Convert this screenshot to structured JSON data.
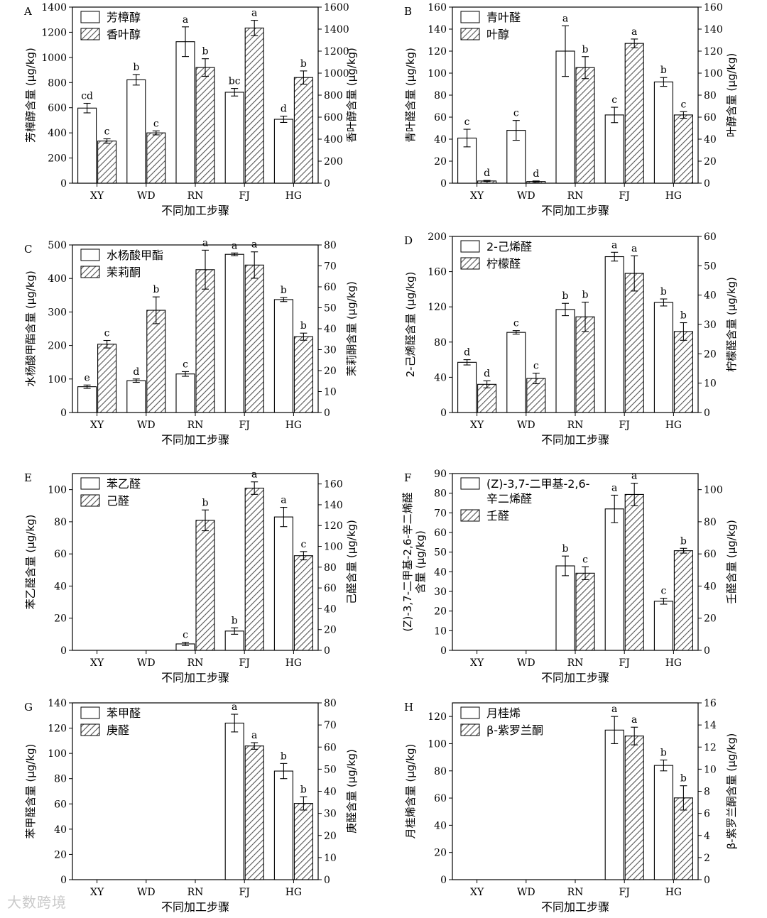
{
  "watermark": "大数跨境",
  "common": {
    "categories": [
      "XY",
      "WD",
      "RN",
      "FJ",
      "HG"
    ],
    "xlabel": "不同加工步骤"
  },
  "chart_data": [
    {
      "panel": "A",
      "type": "bar",
      "categories": [
        "XY",
        "WD",
        "RN",
        "FJ",
        "HG"
      ],
      "xlabel": "不同加工步骤",
      "ylabel": "芳樟醇含量 (μg/kg)",
      "y2label": "香叶醇含量 (μg/kg)",
      "ylim": [
        0,
        1400
      ],
      "ystep": 200,
      "y2lim": [
        0,
        1600
      ],
      "y2step": 200,
      "series": [
        {
          "name": "芳樟醇",
          "axis": "left",
          "pattern": "open",
          "values": [
            597,
            822,
            1125,
            723,
            508
          ],
          "errors": [
            38,
            42,
            118,
            30,
            25
          ],
          "labels": [
            "cd",
            "b",
            "a",
            "bc",
            "d"
          ]
        },
        {
          "name": "香叶醇",
          "axis": "right",
          "pattern": "hatch",
          "values": [
            383,
            457,
            1051,
            1410,
            960
          ],
          "errors": [
            20,
            18,
            80,
            70,
            60
          ],
          "labels": [
            "c",
            "c",
            "b",
            "a",
            "b"
          ]
        }
      ]
    },
    {
      "panel": "B",
      "type": "bar",
      "categories": [
        "XY",
        "WD",
        "RN",
        "FJ",
        "HG"
      ],
      "xlabel": "不同加工步骤",
      "ylabel": "青叶醛含量 (μg/kg)",
      "y2label": "叶醇含量 (μg/kg)",
      "ylim": [
        0,
        160
      ],
      "ystep": 20,
      "y2lim": [
        0,
        160
      ],
      "y2step": 20,
      "series": [
        {
          "name": "青叶醛",
          "axis": "left",
          "pattern": "open",
          "values": [
            41,
            48,
            120,
            62,
            92
          ],
          "errors": [
            8,
            9,
            23,
            7,
            4
          ],
          "labels": [
            "c",
            "c",
            "a",
            "c",
            "b"
          ]
        },
        {
          "name": "叶醇",
          "axis": "right",
          "pattern": "hatch",
          "values": [
            2,
            1.5,
            105,
            127,
            62
          ],
          "errors": [
            0.5,
            0.5,
            10,
            4,
            3
          ],
          "labels": [
            "d",
            "d",
            "b",
            "a",
            "c"
          ]
        }
      ]
    },
    {
      "panel": "C",
      "type": "bar",
      "categories": [
        "XY",
        "WD",
        "RN",
        "FJ",
        "HG"
      ],
      "xlabel": "不同加工步骤",
      "ylabel": "水杨酸甲酯含量 (μg/kg)",
      "y2label": "茉莉酮含量 (μg/kg)",
      "ylim": [
        0,
        500
      ],
      "ystep": 100,
      "y2lim": [
        0,
        80
      ],
      "y2step": 10,
      "series": [
        {
          "name": "水杨酸甲酯",
          "axis": "left",
          "pattern": "open",
          "values": [
            77,
            95,
            115,
            472,
            337
          ],
          "errors": [
            5,
            5,
            7,
            4,
            6
          ],
          "labels": [
            "e",
            "d",
            "c",
            "a",
            "b"
          ]
        },
        {
          "name": "茉莉酮",
          "axis": "right",
          "pattern": "hatch",
          "values": [
            32.6,
            48.8,
            68.2,
            70.4,
            36.2
          ],
          "errors": [
            1.8,
            6.4,
            9.3,
            6.3,
            1.7
          ],
          "labels": [
            "c",
            "b",
            "a",
            "a",
            "b"
          ]
        }
      ]
    },
    {
      "panel": "D",
      "type": "bar",
      "categories": [
        "XY",
        "WD",
        "RN",
        "FJ",
        "HG"
      ],
      "xlabel": "不同加工步骤",
      "ylabel": "2-己烯醛含量 (μg/kg)",
      "y2label": "柠檬醛含量 (μg/kg)",
      "ylim": [
        0,
        200
      ],
      "ystep": 40,
      "y2lim": [
        0,
        60
      ],
      "y2step": 10,
      "series": [
        {
          "name": "2-己烯醛",
          "axis": "left",
          "pattern": "open",
          "values": [
            57,
            91,
            117,
            177,
            125
          ],
          "errors": [
            3,
            2,
            7,
            5,
            4
          ],
          "labels": [
            "d",
            "c",
            "b",
            "a",
            "b"
          ]
        },
        {
          "name": "柠檬醛",
          "axis": "right",
          "pattern": "hatch",
          "values": [
            9.6,
            11.6,
            32.6,
            47.4,
            27.6
          ],
          "errors": [
            1.2,
            1.8,
            5.0,
            6.0,
            3.0
          ],
          "labels": [
            "d",
            "c",
            "b",
            "a",
            "b"
          ]
        }
      ]
    },
    {
      "panel": "E",
      "type": "bar",
      "categories": [
        "XY",
        "WD",
        "RN",
        "FJ",
        "HG"
      ],
      "xlabel": "不同加工步骤",
      "ylabel": "苯乙醛含量 (μg/kg)",
      "y2label": "己醛含量 (μg/kg)",
      "ylim": [
        0,
        110
      ],
      "ystep": 20,
      "y2lim": [
        0,
        170
      ],
      "y2step": 20,
      "series": [
        {
          "name": "苯乙醛",
          "axis": "left",
          "pattern": "open",
          "values": [
            0,
            0,
            4,
            12,
            83
          ],
          "errors": [
            0,
            0,
            1,
            2,
            6
          ],
          "labels": [
            "",
            "",
            "c",
            "b",
            "a"
          ]
        },
        {
          "name": "己醛",
          "axis": "right",
          "pattern": "hatch",
          "values": [
            0,
            0,
            125,
            156,
            91
          ],
          "errors": [
            0,
            0,
            10,
            6,
            4
          ],
          "labels": [
            "",
            "",
            "b",
            "a",
            "c"
          ]
        }
      ]
    },
    {
      "panel": "F",
      "type": "bar",
      "categories": [
        "XY",
        "WD",
        "RN",
        "FJ",
        "HG"
      ],
      "xlabel": "不同加工步骤",
      "ylabel_lines": [
        "(Z)-3,7-二甲基-2,6-辛二烯醛",
        "含量 (μg/kg)"
      ],
      "y2label": "壬醛含量 (μg/kg)",
      "ylim": [
        0,
        90
      ],
      "ystep": 10,
      "y2lim": [
        0,
        110
      ],
      "y2step": 20,
      "series": [
        {
          "name_lines": [
            "(Z)-3,7-二甲基-2,6-",
            "辛二烯醛"
          ],
          "axis": "left",
          "pattern": "open",
          "values": [
            0,
            0,
            43,
            72,
            25
          ],
          "errors": [
            0,
            0,
            5,
            7,
            1.5
          ],
          "labels": [
            "",
            "",
            "b",
            "a",
            "c"
          ]
        },
        {
          "name": "壬醛",
          "axis": "right",
          "pattern": "hatch",
          "values": [
            0,
            0,
            48,
            97,
            62
          ],
          "errors": [
            0,
            0,
            4,
            7,
            1.5
          ],
          "labels": [
            "",
            "",
            "c",
            "a",
            "b"
          ]
        }
      ]
    },
    {
      "panel": "G",
      "type": "bar",
      "categories": [
        "XY",
        "WD",
        "RN",
        "FJ",
        "HG"
      ],
      "xlabel": "不同加工步骤",
      "ylabel": "苯甲醛含量 (μg/kg)",
      "y2label": "庚醛含量 (μg/kg)",
      "ylim": [
        0,
        140
      ],
      "ystep": 20,
      "y2lim": [
        0,
        80
      ],
      "y2step": 10,
      "series": [
        {
          "name": "苯甲醛",
          "axis": "left",
          "pattern": "open",
          "values": [
            0,
            0,
            0,
            124,
            86
          ],
          "errors": [
            0,
            0,
            0,
            7,
            6
          ],
          "labels": [
            "",
            "",
            "",
            "a",
            "b"
          ]
        },
        {
          "name": "庚醛",
          "axis": "right",
          "pattern": "hatch",
          "values": [
            0,
            0,
            0,
            60.5,
            34.5
          ],
          "errors": [
            0,
            0,
            0,
            1.5,
            3
          ],
          "labels": [
            "",
            "",
            "",
            "a",
            "b"
          ]
        }
      ]
    },
    {
      "panel": "H",
      "type": "bar",
      "categories": [
        "XY",
        "WD",
        "RN",
        "FJ",
        "HG"
      ],
      "xlabel": "不同加工步骤",
      "ylabel": "月桂烯含量 (μg/kg)",
      "y2label": "β-紫罗兰酮含量 (μg/kg)",
      "ylim": [
        0,
        130
      ],
      "ystep": 20,
      "y2lim": [
        0,
        16
      ],
      "y2step": 2,
      "series": [
        {
          "name": "月桂烯",
          "axis": "left",
          "pattern": "open",
          "values": [
            0,
            0,
            0,
            110,
            84
          ],
          "errors": [
            0,
            0,
            0,
            10,
            4
          ],
          "labels": [
            "",
            "",
            "",
            "a",
            "b"
          ]
        },
        {
          "name": "β-紫罗兰酮",
          "axis": "right",
          "pattern": "hatch",
          "values": [
            0,
            0,
            0,
            13,
            7.4
          ],
          "errors": [
            0,
            0,
            0,
            0.8,
            1.1
          ],
          "labels": [
            "",
            "",
            "",
            "a",
            "b"
          ]
        }
      ]
    }
  ]
}
